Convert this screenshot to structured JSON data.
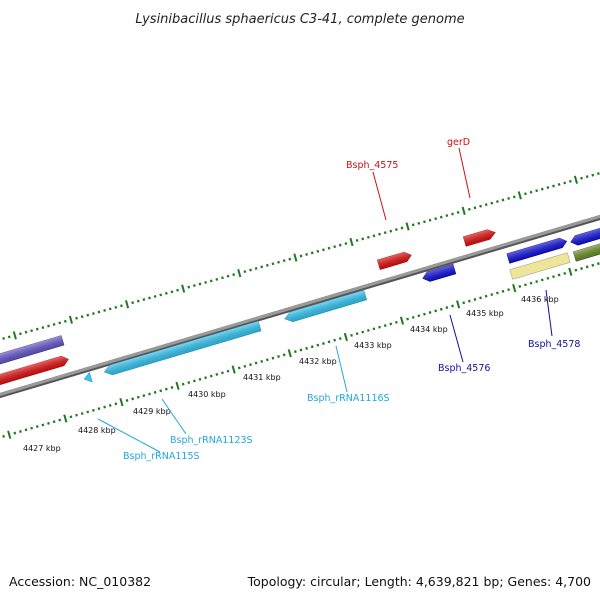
{
  "title": "Lysinibacillus sphaericus C3-41, complete genome",
  "footer": {
    "accession": "Accession: NC_010382",
    "topology": "Topology: circular; Length: 4,639,821 bp; Genes: 4,700"
  },
  "colors": {
    "tick": "#1f7a1f",
    "backbone": "#8a8a8a",
    "red_gene": "#e01010",
    "blue_gene": "#1010dd",
    "cyan_gene": "#33c5f0",
    "purple_gene": "#6655cc",
    "yellow_gene": "#eee49a",
    "olive_gene": "#6b8e23",
    "red_label": "#d01010",
    "blue_label": "#1010a0",
    "cyan_label": "#22a8dd"
  },
  "kbp_labels": [
    "4427 kbp",
    "4428 kbp",
    "4429 kbp",
    "4430 kbp",
    "4431 kbp",
    "4432 kbp",
    "4433 kbp",
    "4434 kbp",
    "4435 kbp",
    "4436 kbp"
  ],
  "gene_labels": {
    "bsph_4575": "Bsph_4575",
    "gerD": "gerD",
    "bsph_4576": "Bsph_4576",
    "bsph_4578": "Bsph_4578",
    "rrna1116": "Bsph_rRNA1116S",
    "rrna1123": "Bsph_rRNA1123S",
    "rrna115": "Bsph_rRNA115S"
  }
}
